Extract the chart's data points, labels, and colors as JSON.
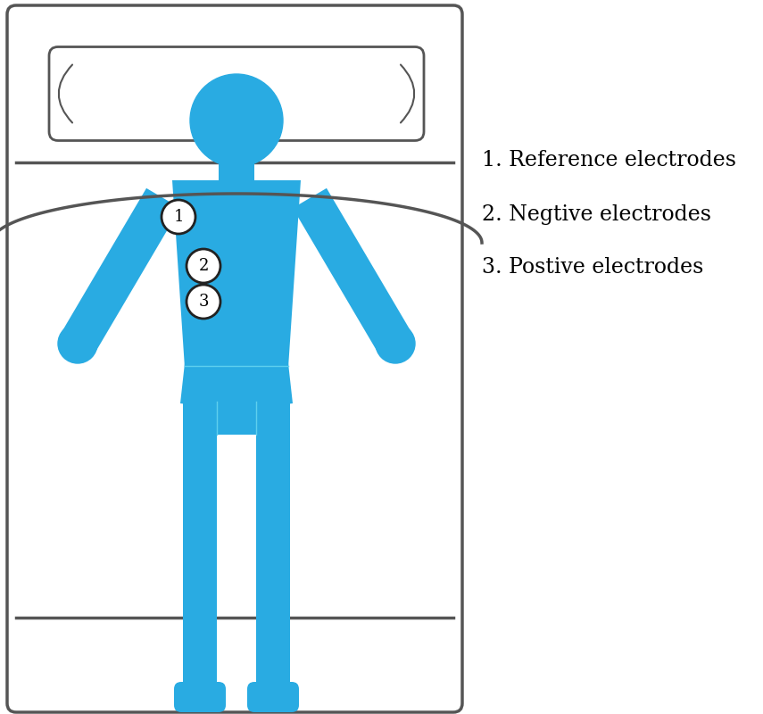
{
  "body_color": "#29ABE2",
  "bed_color": "#ffffff",
  "bed_border_color": "#555555",
  "electrode_fill": "#ffffff",
  "electrode_border": "#222222",
  "legend_labels": [
    "1. Reference electrodes",
    "2. Negtive electrodes",
    "3. Postive electrodes"
  ],
  "font_size": 17,
  "bg_color": "#ffffff",
  "fig_w": 8.55,
  "fig_h": 8.0,
  "dpi": 100
}
